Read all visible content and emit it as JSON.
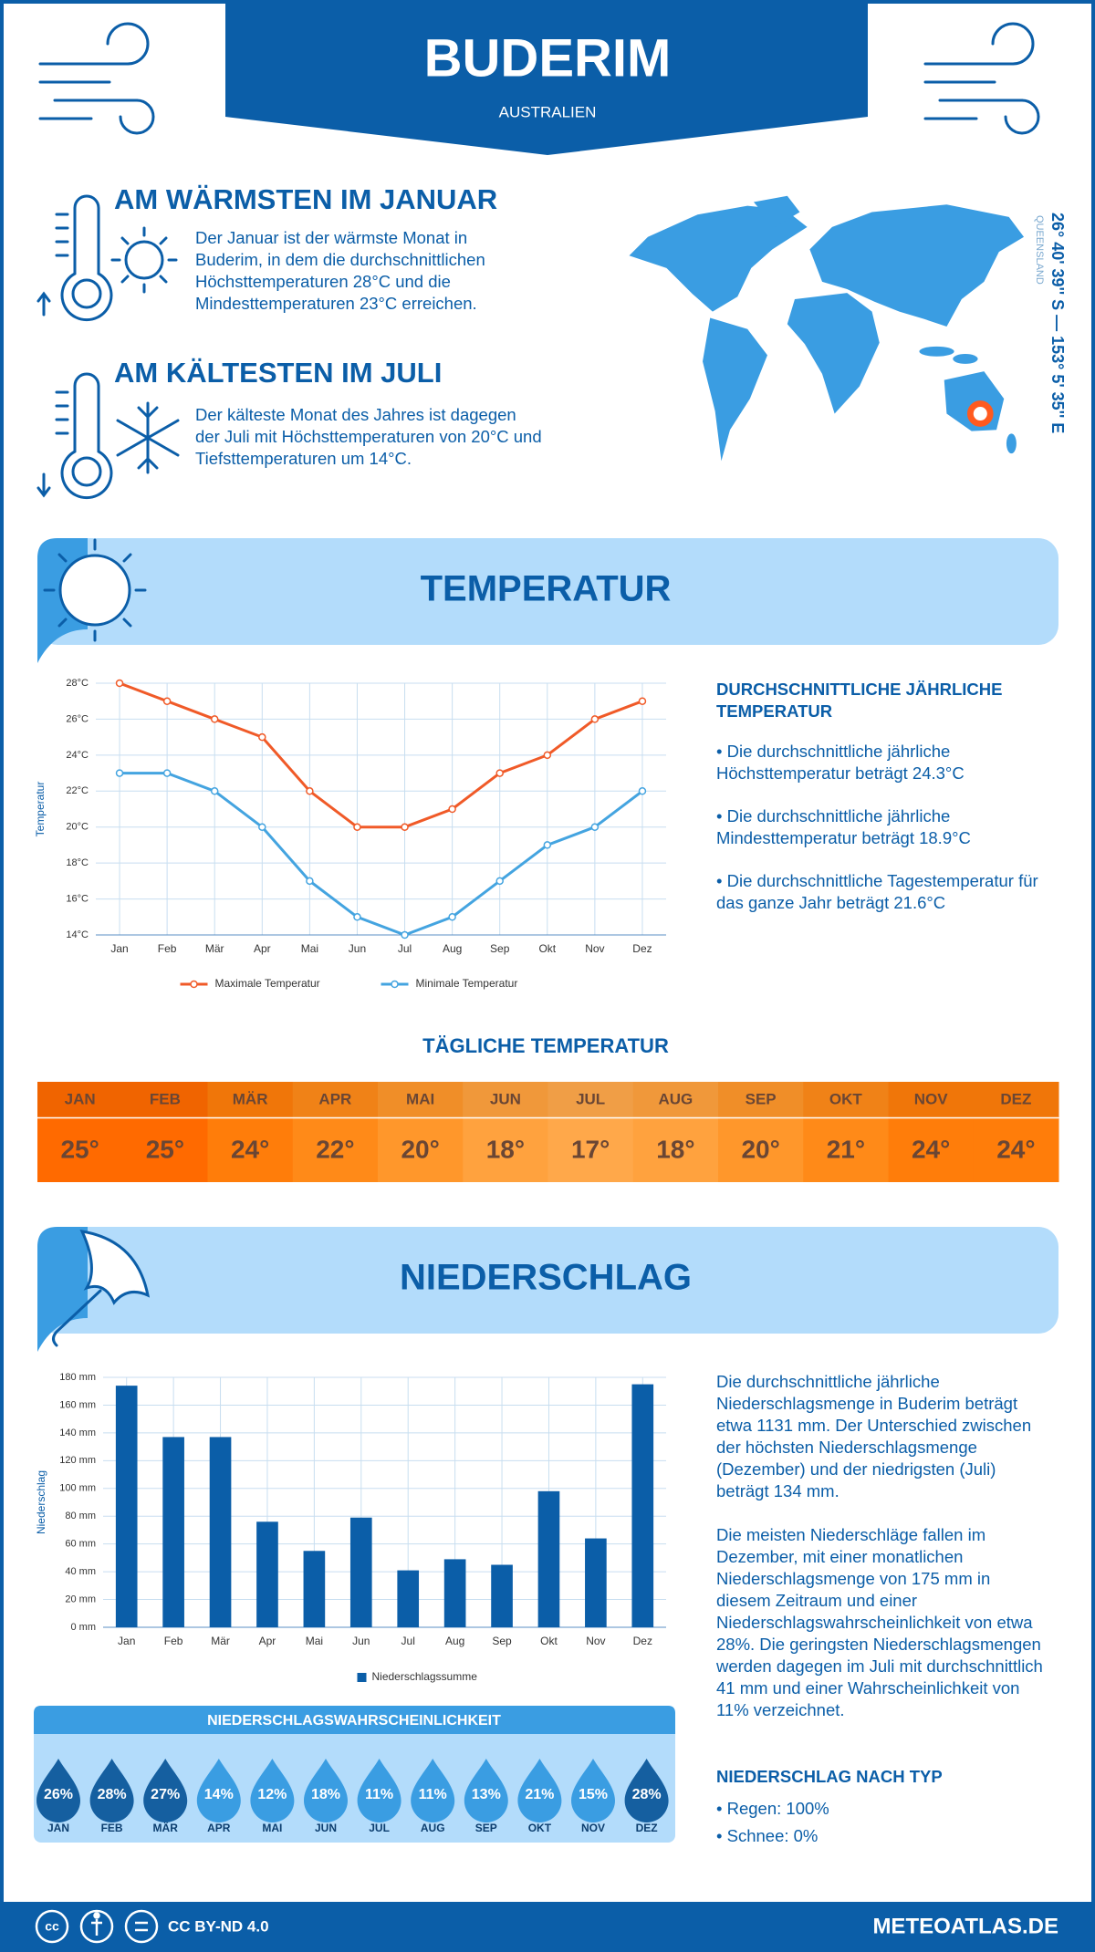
{
  "header": {
    "title": "BUDERIM",
    "subtitle": "AUSTRALIEN"
  },
  "warmest": {
    "title": "AM WÄRMSTEN IM JANUAR",
    "text": "Der Januar ist der wärmste Monat in Buderim, in dem die durchschnittlichen Höchsttemperaturen 28°C und die Mindesttemperaturen 23°C erreichen."
  },
  "coldest": {
    "title": "AM KÄLTESTEN IM JULI",
    "text": "Der kälteste Monat des Jahres ist dagegen der Juli mit Höchsttemperaturen von 20°C und Tiefsttemperaturen um 14°C."
  },
  "location": {
    "coordinates": "26° 40' 39'' S — 153° 5' 35'' E",
    "region": "QUEENSLAND"
  },
  "temperature_section": {
    "title": "TEMPERATUR",
    "summary_title": "DURCHSCHNITTLICHE JÄHRLICHE TEMPERATUR",
    "summary": [
      "• Die durchschnittliche jährliche Höchsttemperatur beträgt 24.3°C",
      "• Die durchschnittliche jährliche Mindesttemperatur beträgt 18.9°C",
      "• Die durchschnittliche Tagestemperatur für das ganze Jahr beträgt 21.6°C"
    ]
  },
  "daily_temperature": {
    "title": "TÄGLICHE TEMPERATUR",
    "months": [
      "JAN",
      "FEB",
      "MÄR",
      "APR",
      "MAI",
      "JUN",
      "JUL",
      "AUG",
      "SEP",
      "OKT",
      "NOV",
      "DEZ"
    ],
    "values": [
      "25°",
      "25°",
      "24°",
      "22°",
      "20°",
      "18°",
      "17°",
      "18°",
      "20°",
      "21°",
      "24°",
      "24°"
    ],
    "colors": [
      "#ff6a00",
      "#ff6a00",
      "#ff7d0a",
      "#ff8a18",
      "#ff972b",
      "#ffa23e",
      "#ffa84a",
      "#ffa23e",
      "#ff972b",
      "#ff8a18",
      "#ff7d0a",
      "#ff7d0a"
    ]
  },
  "precipitation_section": {
    "title": "NIEDERSCHLAG",
    "text": [
      "Die durchschnittliche jährliche Niederschlagsmenge in Buderim beträgt etwa 1131 mm. Der Unterschied zwischen der höchsten Niederschlagsmenge (Dezember) und der niedrigsten (Juli) beträgt 134 mm.",
      "Die meisten Niederschläge fallen im Dezember, mit einer monatlichen Niederschlagsmenge von 175 mm in diesem Zeitraum und einer Niederschlagswahrscheinlichkeit von etwa 28%. Die geringsten Niederschlagsmengen werden dagegen im Juli mit durchschnittlich 41 mm und einer Wahrscheinlichkeit von 11% verzeichnet."
    ],
    "type_title": "NIEDERSCHLAG NACH TYP",
    "types": [
      "• Regen: 100%",
      "• Schnee: 0%"
    ]
  },
  "precipitation_probability": {
    "title": "NIEDERSCHLAGSWAHRSCHEINLICHKEIT",
    "months": [
      "JAN",
      "FEB",
      "MÄR",
      "APR",
      "MAI",
      "JUN",
      "JUL",
      "AUG",
      "SEP",
      "OKT",
      "NOV",
      "DEZ"
    ],
    "values": [
      "26%",
      "28%",
      "27%",
      "14%",
      "12%",
      "18%",
      "11%",
      "11%",
      "13%",
      "21%",
      "15%",
      "28%"
    ],
    "colors": [
      "#155fa0",
      "#155fa0",
      "#155fa0",
      "#3a9de2",
      "#3a9de2",
      "#3a9de2",
      "#3a9de2",
      "#3a9de2",
      "#3a9de2",
      "#3a9de2",
      "#3a9de2",
      "#155fa0"
    ]
  },
  "footer": {
    "license": "CC BY-ND 4.0",
    "site": "METEOATLAS.DE"
  },
  "chart_data": [
    {
      "type": "line",
      "ylabel": "Temperatur",
      "categories": [
        "Jan",
        "Feb",
        "Mär",
        "Apr",
        "Mai",
        "Jun",
        "Jul",
        "Aug",
        "Sep",
        "Okt",
        "Nov",
        "Dez"
      ],
      "series": [
        {
          "name": "Maximale Temperatur",
          "color": "#f05a28",
          "values": [
            28,
            27,
            26,
            25,
            22,
            20,
            20,
            21,
            23,
            24,
            26,
            27
          ]
        },
        {
          "name": "Minimale Temperatur",
          "color": "#44a4e0",
          "values": [
            23,
            23,
            22,
            20,
            17,
            15,
            14,
            15,
            17,
            19,
            20,
            22
          ]
        }
      ],
      "ylim": [
        14,
        28
      ],
      "yticks": [
        {
          "value": 14,
          "label": "14°C"
        },
        {
          "value": 16,
          "label": "16°C"
        },
        {
          "value": 18,
          "label": "18°C"
        },
        {
          "value": 20,
          "label": "20°C"
        },
        {
          "value": 22,
          "label": "22°C"
        },
        {
          "value": 24,
          "label": "24°C"
        },
        {
          "value": 26,
          "label": "26°C"
        },
        {
          "value": 28,
          "label": "28°C"
        }
      ],
      "grid": true
    },
    {
      "type": "bar",
      "ylabel": "Niederschlag",
      "categories": [
        "Jan",
        "Feb",
        "Mär",
        "Apr",
        "Mai",
        "Jun",
        "Jul",
        "Aug",
        "Sep",
        "Okt",
        "Nov",
        "Dez"
      ],
      "series": [
        {
          "name": "Niederschlagssumme",
          "color": "#0b5ea8",
          "values": [
            174,
            137,
            137,
            76,
            55,
            79,
            41,
            49,
            45,
            98,
            64,
            175
          ]
        }
      ],
      "ylim": [
        0,
        180
      ],
      "yticks": [
        {
          "value": 0,
          "label": "0 mm"
        },
        {
          "value": 20,
          "label": "20 mm"
        },
        {
          "value": 40,
          "label": "40 mm"
        },
        {
          "value": 60,
          "label": "60 mm"
        },
        {
          "value": 80,
          "label": "80 mm"
        },
        {
          "value": 100,
          "label": "100 mm"
        },
        {
          "value": 120,
          "label": "120 mm"
        },
        {
          "value": 140,
          "label": "140 mm"
        },
        {
          "value": 160,
          "label": "160 mm"
        },
        {
          "value": 180,
          "label": "180 mm"
        }
      ],
      "grid": true
    }
  ]
}
